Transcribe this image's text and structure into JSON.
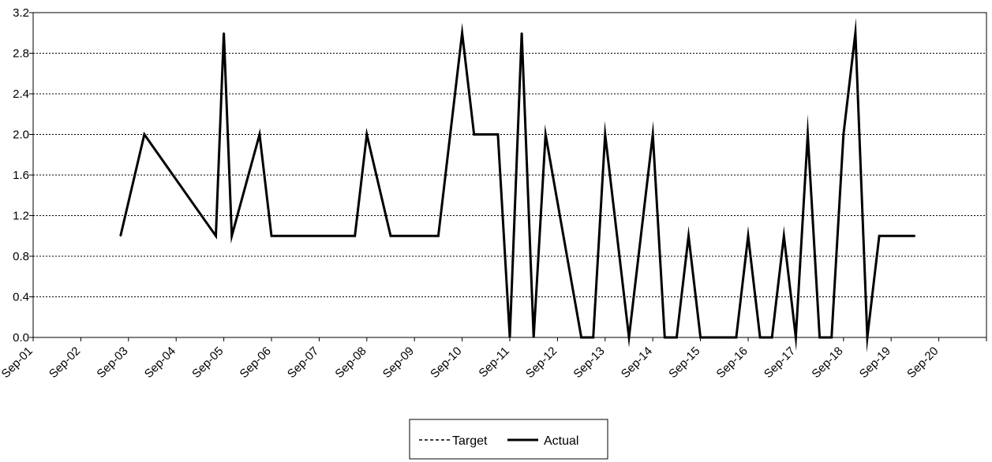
{
  "chart_data": {
    "type": "line",
    "title": "",
    "xlabel": "",
    "ylabel": "",
    "ylim": [
      0,
      3.2
    ],
    "y_ticks": [
      "0.0",
      "0.4",
      "0.8",
      "1.2",
      "1.6",
      "2.0",
      "2.4",
      "2.8",
      "3.2"
    ],
    "x_ticks": [
      "Sep-01",
      "Sep-02",
      "Sep-03",
      "Sep-04",
      "Sep-05",
      "Sep-06",
      "Sep-07",
      "Sep-08",
      "Sep-09",
      "Sep-10",
      "Sep-11",
      "Sep-12",
      "Sep-13",
      "Sep-14",
      "Sep-15",
      "Sep-16",
      "Sep-17",
      "Sep-18",
      "Sep-19",
      "Sep-20"
    ],
    "xlim": [
      "Sep-01",
      "Sep-21"
    ],
    "grid": "horizontal dotted",
    "legend_position": "bottom",
    "series": [
      {
        "name": "Target",
        "line_style": "dashed",
        "color": "#000000",
        "points": []
      },
      {
        "name": "Actual",
        "line_style": "solid",
        "color": "#000000",
        "points": [
          [
            "Sep-02 20:00",
            1
          ],
          [
            "Sep-03 08:00",
            2
          ],
          [
            "Sep-04 20:00",
            1
          ],
          [
            "Sep-05 00:00",
            3
          ],
          [
            "Sep-05 04:00",
            1
          ],
          [
            "Sep-05 18:00",
            2
          ],
          [
            "Sep-06 00:00",
            1
          ],
          [
            "Sep-07 18:00",
            1
          ],
          [
            "Sep-08 00:00",
            2
          ],
          [
            "Sep-08 12:00",
            1
          ],
          [
            "Sep-09 12:00",
            1
          ],
          [
            "Sep-10 00:00",
            3
          ],
          [
            "Sep-10 06:00",
            2
          ],
          [
            "Sep-10 18:00",
            2
          ],
          [
            "Sep-11 00:00",
            0
          ],
          [
            "Sep-11 06:00",
            3
          ],
          [
            "Sep-11 12:00",
            0
          ],
          [
            "Sep-11 18:00",
            2
          ],
          [
            "Sep-12 12:00",
            0
          ],
          [
            "Sep-12 18:00",
            0
          ],
          [
            "Sep-13 00:00",
            2
          ],
          [
            "Sep-13 12:00",
            0
          ],
          [
            "Sep-14 00:00",
            2
          ],
          [
            "Sep-14 06:00",
            0
          ],
          [
            "Sep-14 12:00",
            0
          ],
          [
            "Sep-14 18:00",
            1
          ],
          [
            "Sep-15 00:00",
            0
          ],
          [
            "Sep-15 18:00",
            0
          ],
          [
            "Sep-16 00:00",
            1
          ],
          [
            "Sep-16 06:00",
            0
          ],
          [
            "Sep-16 12:00",
            0
          ],
          [
            "Sep-16 18:00",
            1
          ],
          [
            "Sep-17 00:00",
            0
          ],
          [
            "Sep-17 06:00",
            2
          ],
          [
            "Sep-17 12:00",
            0
          ],
          [
            "Sep-17 18:00",
            0
          ],
          [
            "Sep-18 00:00",
            2
          ],
          [
            "Sep-18 06:00",
            3
          ],
          [
            "Sep-18 12:00",
            0
          ],
          [
            "Sep-18 18:00",
            1
          ],
          [
            "Sep-19 12:00",
            1
          ]
        ]
      }
    ]
  }
}
